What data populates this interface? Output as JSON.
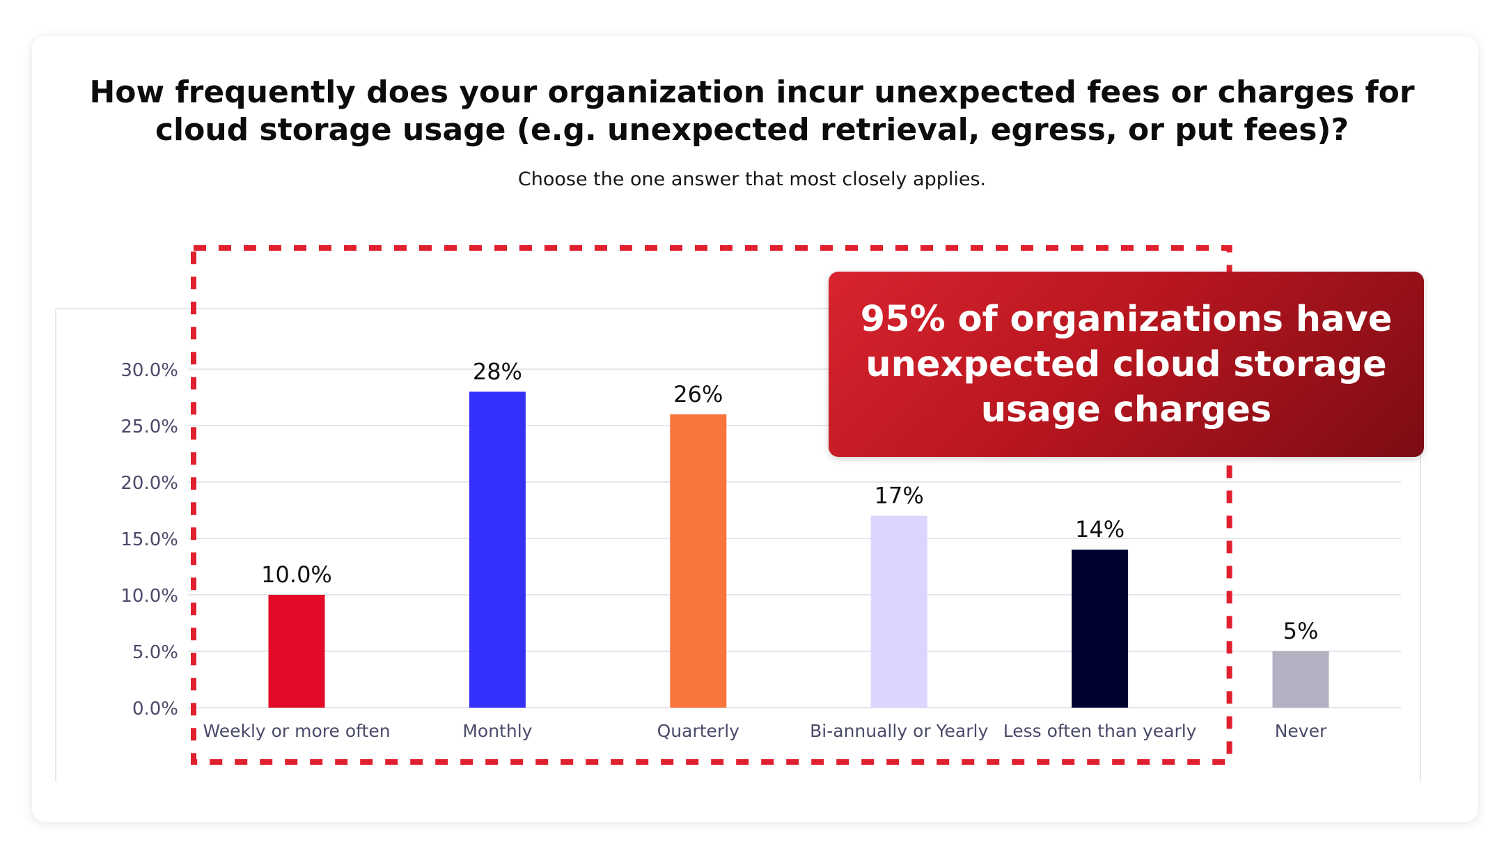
{
  "chart_data": {
    "type": "bar",
    "title": "How frequently does your organization incur unexpected fees or charges for cloud storage usage (e.g. unexpected retrieval, egress, or put fees)?",
    "subtitle": "Choose the one answer that most closely applies.",
    "xlabel": "",
    "ylabel": "",
    "ylim": [
      0,
      30
    ],
    "yticks": [
      0,
      5,
      10,
      15,
      20,
      25,
      30
    ],
    "ytick_labels": [
      "0.0%",
      "5.0%",
      "10.0%",
      "15.0%",
      "20.0%",
      "25.0%",
      "30.0%"
    ],
    "grid": true,
    "categories": [
      "Weekly or more often",
      "Monthly",
      "Quarterly",
      "Bi-annually or Yearly",
      "Less often than yearly",
      "Never"
    ],
    "values": [
      10,
      28,
      26,
      17,
      14,
      5
    ],
    "data_labels": [
      "10.0%",
      "28%",
      "26%",
      "17%",
      "14%",
      "5%"
    ],
    "colors": [
      "#e20a26",
      "#3630fc",
      "#f8743a",
      "#dad6ff",
      "#01012f",
      "#b2b1c1"
    ],
    "highlight": {
      "categories": [
        "Weekly or more often",
        "Monthly",
        "Quarterly",
        "Bi-annually or Yearly",
        "Less often than yearly"
      ],
      "color": "#e0202e"
    },
    "annotation": "95% of organizations have unexpected cloud storage usage charges"
  },
  "theme": {
    "axis_text_color": "#4a4a6a",
    "grid_color": "#e6e6ee",
    "label_color": "#111111"
  }
}
